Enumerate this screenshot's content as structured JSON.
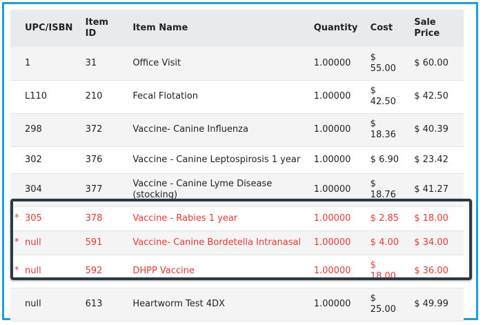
{
  "columns": {
    "upc": "UPC/ISBN",
    "item_id": "Item\nID",
    "name": "Item Name",
    "quantity": "Quantity",
    "cost": "Cost",
    "sale_price": "Sale\nPrice"
  },
  "rows": [
    {
      "upc": "1",
      "item_id": "31",
      "name": "Office Visit",
      "quantity": "1.00000",
      "cost": "$ 55.00",
      "sale_price": "$ 60.00",
      "flag": ""
    },
    {
      "upc": "L110",
      "item_id": "210",
      "name": "Fecal Flotation",
      "quantity": "1.00000",
      "cost": "$ 42.50",
      "sale_price": "$ 42.50",
      "flag": ""
    },
    {
      "upc": "298",
      "item_id": "372",
      "name": "Vaccine- Canine Influenza",
      "quantity": "1.00000",
      "cost": "$ 18.36",
      "sale_price": "$ 40.39",
      "flag": ""
    },
    {
      "upc": "302",
      "item_id": "376",
      "name": "Vaccine - Canine Leptospirosis 1 year",
      "quantity": "1.00000",
      "cost": "$ 6.90",
      "sale_price": "$ 23.42",
      "flag": ""
    },
    {
      "upc": "304",
      "item_id": "377",
      "name": "Vaccine - Canine Lyme Disease (stocking)",
      "quantity": "1.00000",
      "cost": "$ 18.76",
      "sale_price": "$ 41.27",
      "flag": ""
    },
    {
      "upc": "305",
      "item_id": "378",
      "name": "Vaccine - Rabies 1 year",
      "quantity": "1.00000",
      "cost": "$ 2.85",
      "sale_price": "$ 18.00",
      "flag": "*"
    },
    {
      "upc": "null",
      "item_id": "591",
      "name": "Vaccine- Canine Bordetella Intranasal",
      "quantity": "1.00000",
      "cost": "$ 4.00",
      "sale_price": "$ 34.00",
      "flag": "*"
    },
    {
      "upc": "null",
      "item_id": "592",
      "name": "DHPP Vaccine",
      "quantity": "1.00000",
      "cost": "$ 18.00",
      "sale_price": "$ 36.00",
      "flag": "*"
    },
    {
      "upc": "null",
      "item_id": "613",
      "name": "Heartworm Test 4DX",
      "quantity": "1.00000",
      "cost": "$ 25.00",
      "sale_price": "$ 49.99",
      "flag": ""
    }
  ],
  "colors": {
    "flagged_text": "#e53935",
    "frame_border": "#1aa0d8",
    "highlight_border": "#2b3944",
    "header_bg": "#e9eaed"
  }
}
